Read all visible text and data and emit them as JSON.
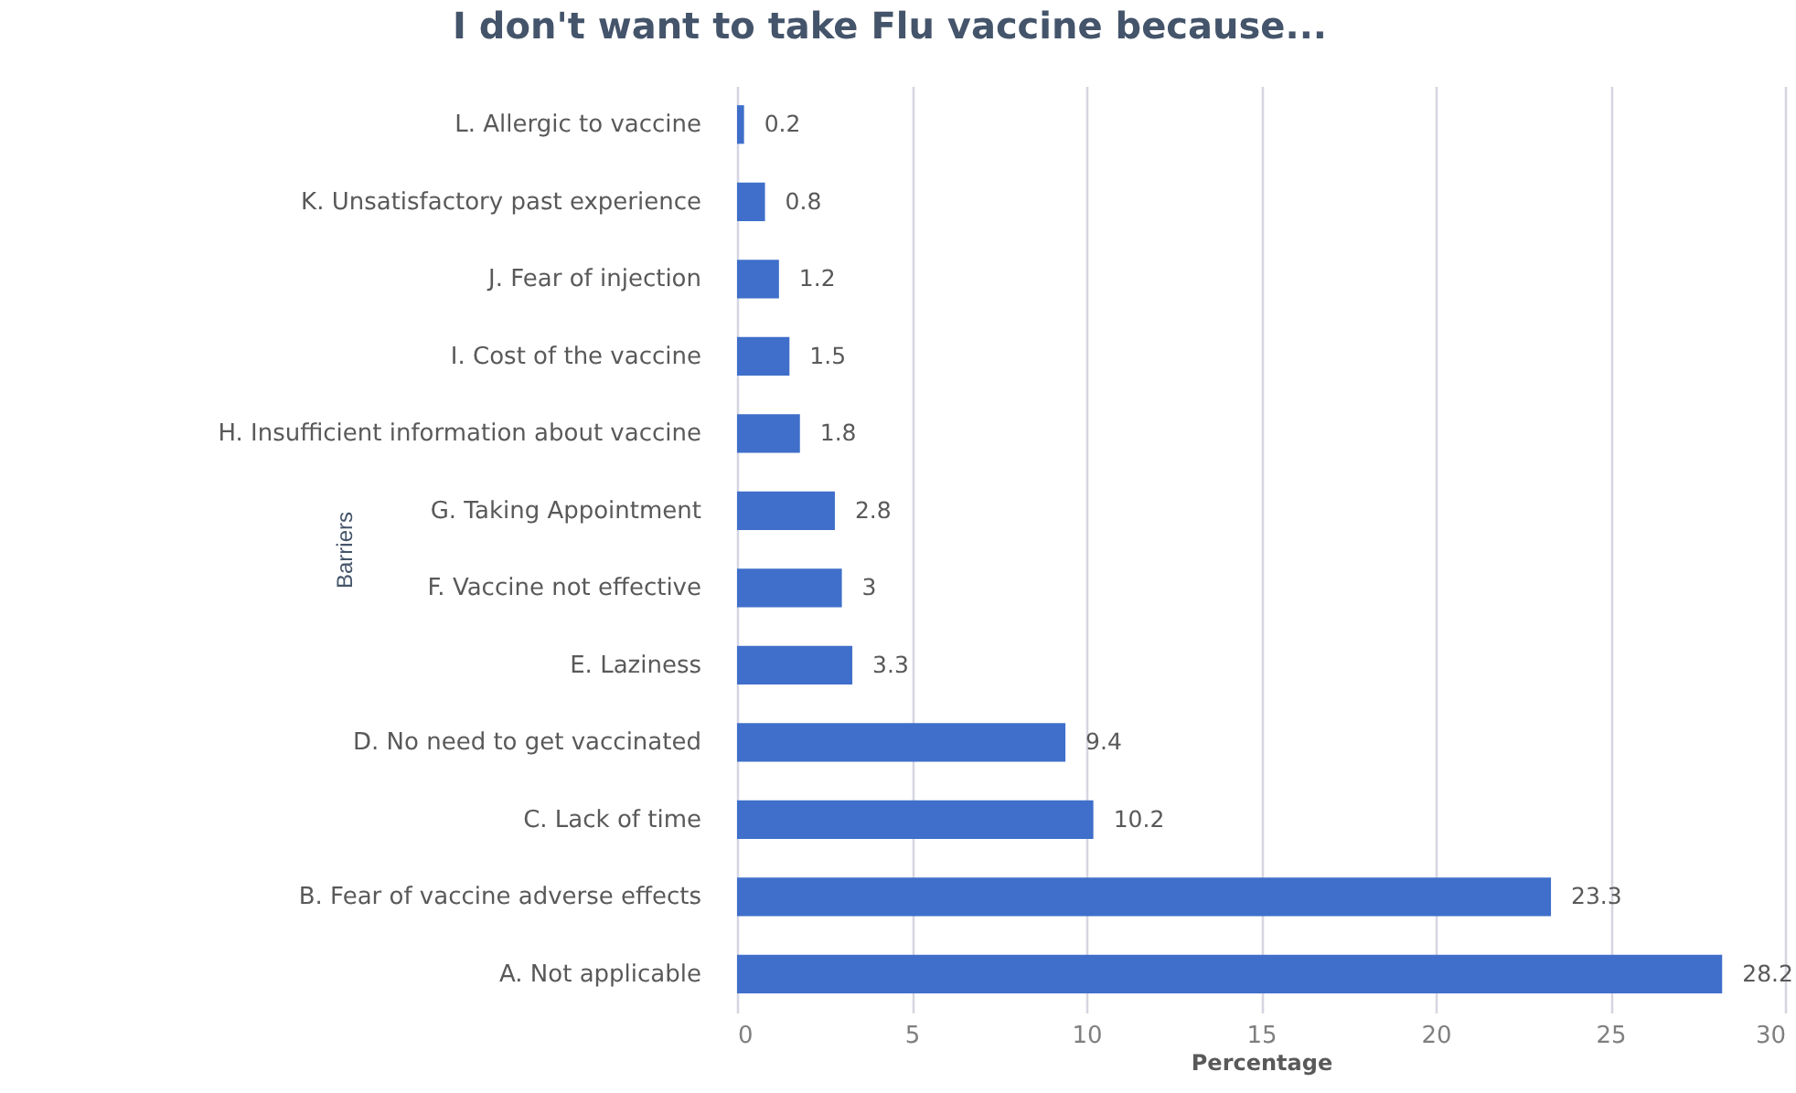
{
  "chart_data": {
    "type": "bar",
    "orientation": "horizontal",
    "title": "I don't want to take Flu vaccine because...",
    "xlabel": "Percentage",
    "ylabel": "Barriers",
    "categories": [
      "L. Allergic to vaccine",
      "K. Unsatisfactory past experience",
      "J. Fear of injection",
      "I. Cost of the vaccine",
      "H. Insufficient information about vaccine",
      "G. Taking Appointment",
      "F. Vaccine not effective",
      "E. Laziness",
      "D. No need to get vaccinated",
      "C. Lack of time",
      "B. Fear of vaccine adverse effects",
      "A. Not applicable"
    ],
    "values": [
      0.2,
      0.8,
      1.2,
      1.5,
      1.8,
      2.8,
      3,
      3.3,
      9.4,
      10.2,
      23.3,
      28.2
    ],
    "color": "#3f6fca",
    "xlim": [
      0,
      30
    ],
    "xticks": [
      0,
      5,
      10,
      15,
      20,
      25,
      30
    ],
    "grid": "x",
    "data_labels": true
  }
}
